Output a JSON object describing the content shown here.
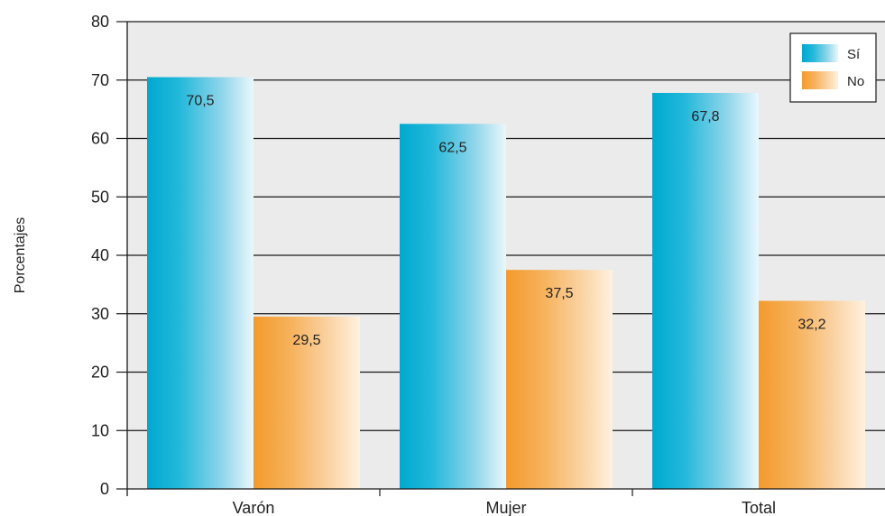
{
  "chart_data": {
    "type": "bar",
    "ylabel": "Porcentajes",
    "xlabel": "",
    "ylim": [
      0,
      80
    ],
    "yticks": [
      0,
      10,
      20,
      30,
      40,
      50,
      60,
      70,
      80
    ],
    "categories": [
      "Varón",
      "Mujer",
      "Total"
    ],
    "series": [
      {
        "name": "Sí",
        "values": [
          70.5,
          62.5,
          67.8
        ],
        "labels": [
          "70,5",
          "62,5",
          "67,8"
        ],
        "color": "#00aed0"
      },
      {
        "name": "No",
        "values": [
          29.5,
          37.5,
          32.2
        ],
        "labels": [
          "29,5",
          "37,5",
          "32,2"
        ],
        "color": "#f4a03a"
      }
    ],
    "grid": true,
    "legend_position": "top-right",
    "plot_background": "#ebebeb"
  }
}
